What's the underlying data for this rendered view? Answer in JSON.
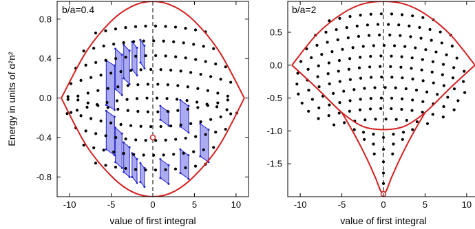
{
  "chart_data": [
    {
      "type": "scatter",
      "panel_label": "b/a=0.4",
      "xlabel": "value of first integral",
      "ylabel": "Energy in units of α²n²",
      "xlim": [
        -11.5,
        11.5
      ],
      "ylim": [
        -1.0,
        0.98
      ],
      "xticks": [
        -10,
        -5,
        0,
        5,
        10
      ],
      "xtick_labels": [
        "-10",
        "-5",
        "0",
        "5",
        "10"
      ],
      "yticks": [
        0.8,
        0.4,
        0.0,
        -0.4,
        -0.8
      ],
      "ytick_labels": [
        "0.8",
        "0.4",
        "0.0",
        "-0.4",
        "-0.8"
      ],
      "envelope": {
        "color": "#d42020",
        "top": [
          [
            -11,
            0.0
          ],
          [
            -8,
            0.47
          ],
          [
            -5,
            0.78
          ],
          [
            -2.5,
            0.93
          ],
          [
            0,
            0.98
          ],
          [
            2.5,
            0.93
          ],
          [
            5,
            0.78
          ],
          [
            8,
            0.47
          ],
          [
            11,
            0.0
          ]
        ],
        "bottom": [
          [
            -11,
            0.0
          ],
          [
            -8,
            -0.48
          ],
          [
            -5,
            -0.79
          ],
          [
            -2.5,
            -0.95
          ],
          [
            0,
            -1.0
          ],
          [
            2.5,
            -0.95
          ],
          [
            5,
            -0.79
          ],
          [
            8,
            -0.48
          ],
          [
            11,
            0.0
          ]
        ]
      },
      "marked_point": {
        "x": 0,
        "y": -0.4,
        "color": "#d42020"
      },
      "dashed_line_x": 0,
      "shape_fill": "#9c9cf0",
      "shape_stroke": "#2323c8",
      "shapes": [
        [
          [
            -5.6,
            0.38
          ],
          [
            -4.6,
            0.33
          ],
          [
            -4.6,
            -0.12
          ],
          [
            -5.6,
            -0.07
          ]
        ],
        [
          [
            -4.5,
            0.5
          ],
          [
            -3.7,
            0.44
          ],
          [
            -3.7,
            0.03
          ],
          [
            -4.5,
            0.09
          ]
        ],
        [
          [
            -3.5,
            0.54
          ],
          [
            -2.8,
            0.48
          ],
          [
            -2.8,
            0.14
          ],
          [
            -3.5,
            0.2
          ]
        ],
        [
          [
            -2.5,
            0.57
          ],
          [
            -1.9,
            0.51
          ],
          [
            -1.9,
            0.23
          ],
          [
            -2.5,
            0.29
          ]
        ],
        [
          [
            -1.5,
            0.59
          ],
          [
            -1.0,
            0.53
          ],
          [
            -1.0,
            0.3
          ],
          [
            -1.5,
            0.36
          ]
        ],
        [
          [
            -5.6,
            -0.13
          ],
          [
            -4.6,
            -0.19
          ],
          [
            -4.6,
            -0.58
          ],
          [
            -5.6,
            -0.52
          ]
        ],
        [
          [
            -4.5,
            -0.3
          ],
          [
            -3.7,
            -0.36
          ],
          [
            -3.7,
            -0.71
          ],
          [
            -4.5,
            -0.65
          ]
        ],
        [
          [
            -3.5,
            -0.45
          ],
          [
            -2.8,
            -0.5
          ],
          [
            -2.8,
            -0.8
          ],
          [
            -3.5,
            -0.75
          ]
        ],
        [
          [
            -2.5,
            -0.56
          ],
          [
            -1.9,
            -0.62
          ],
          [
            -1.9,
            -0.86
          ],
          [
            -2.5,
            -0.8
          ]
        ],
        [
          [
            -1.5,
            -0.66
          ],
          [
            -1.0,
            -0.71
          ],
          [
            -1.0,
            -0.9
          ],
          [
            -1.5,
            -0.85
          ]
        ],
        [
          [
            0.9,
            -0.08
          ],
          [
            1.9,
            -0.14
          ],
          [
            1.9,
            -0.28
          ],
          [
            0.9,
            -0.22
          ]
        ],
        [
          [
            3.3,
            -0.02
          ],
          [
            4.3,
            -0.08
          ],
          [
            4.3,
            -0.35
          ],
          [
            3.3,
            -0.29
          ]
        ],
        [
          [
            5.7,
            -0.26
          ],
          [
            6.7,
            -0.32
          ],
          [
            6.7,
            -0.65
          ],
          [
            5.7,
            -0.59
          ]
        ],
        [
          [
            3.3,
            -0.52
          ],
          [
            4.3,
            -0.58
          ],
          [
            4.3,
            -0.82
          ],
          [
            3.3,
            -0.76
          ]
        ],
        [
          [
            0.9,
            -0.62
          ],
          [
            1.9,
            -0.68
          ],
          [
            1.9,
            -0.87
          ],
          [
            0.9,
            -0.81
          ]
        ]
      ]
    },
    {
      "type": "scatter",
      "panel_label": "b/a=2",
      "xlabel": "value of first integral",
      "ylabel": "",
      "xlim": [
        -11.5,
        11.5
      ],
      "ylim": [
        -2.0,
        0.97
      ],
      "xticks": [
        -10,
        -5,
        0,
        5,
        10
      ],
      "xtick_labels": [
        "-10",
        "-5",
        "0",
        "5",
        "10"
      ],
      "yticks": [
        0.5,
        0.0,
        -0.5,
        -1.0,
        -1.5
      ],
      "ytick_labels": [
        "0.5",
        "0.0",
        "-0.5",
        "-1.0",
        "-1.5"
      ],
      "envelope": {
        "color": "#d42020",
        "top": [
          [
            -11,
            0.0
          ],
          [
            -8,
            0.47
          ],
          [
            -5,
            0.78
          ],
          [
            -2.5,
            0.93
          ],
          [
            0,
            0.97
          ],
          [
            2.5,
            0.93
          ],
          [
            5,
            0.78
          ],
          [
            8,
            0.47
          ],
          [
            11,
            0.0
          ]
        ],
        "middle": [
          [
            -11,
            0.0
          ],
          [
            -8,
            -0.35
          ],
          [
            -5,
            -0.72
          ],
          [
            -2.5,
            -0.93
          ],
          [
            0,
            -0.98
          ],
          [
            2.5,
            -0.93
          ],
          [
            5,
            -0.72
          ],
          [
            8,
            -0.35
          ],
          [
            11,
            0.0
          ]
        ],
        "cusp": [
          [
            -5,
            -0.72
          ],
          [
            -3.5,
            -1.05
          ],
          [
            -2,
            -1.42
          ],
          [
            -1,
            -1.7
          ],
          [
            0,
            -1.96
          ],
          [
            1,
            -1.7
          ],
          [
            2,
            -1.42
          ],
          [
            3.5,
            -1.05
          ],
          [
            5,
            -0.72
          ]
        ]
      },
      "marked_point": {
        "x": 0,
        "y": -1.96,
        "color": "#d42020"
      },
      "dashed_line_x": 0
    }
  ]
}
